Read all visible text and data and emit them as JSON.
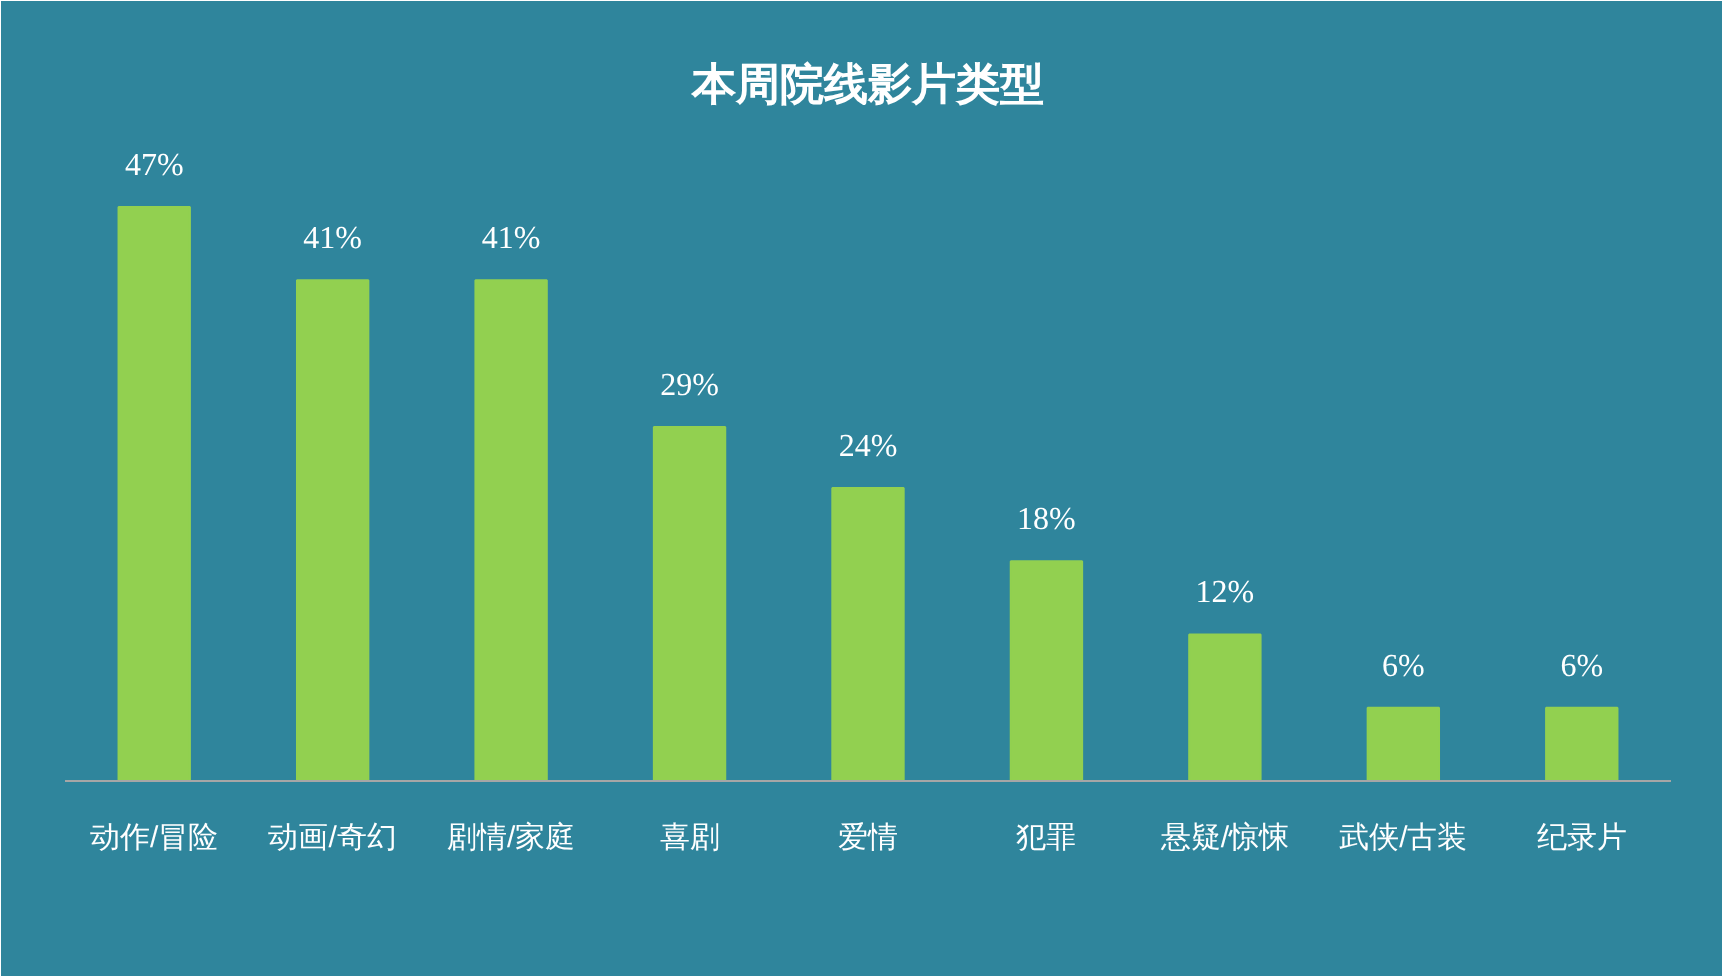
{
  "chart_data": {
    "type": "bar",
    "title": "本周院线影片类型",
    "categories": [
      "动作/冒险",
      "动画/奇幻",
      "剧情/家庭",
      "喜剧",
      "爱情",
      "犯罪",
      "悬疑/惊悚",
      "武侠/古装",
      "纪录片"
    ],
    "values": [
      47,
      41,
      41,
      29,
      24,
      18,
      12,
      6,
      6
    ],
    "value_labels": [
      "47%",
      "41%",
      "41%",
      "29%",
      "24%",
      "18%",
      "12%",
      "6%",
      "6%"
    ],
    "color": "#92d050",
    "grid": false
  }
}
